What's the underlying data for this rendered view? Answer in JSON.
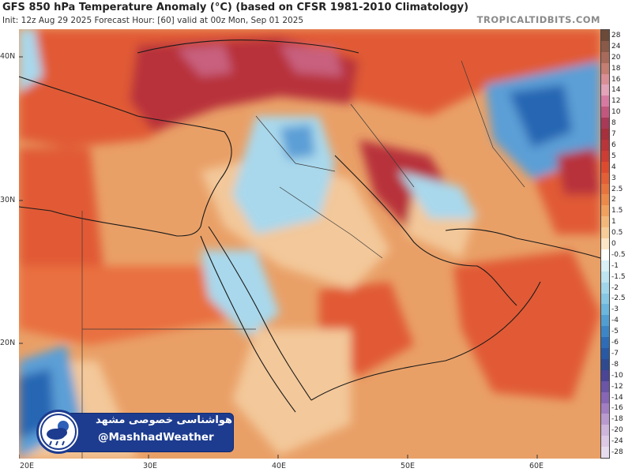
{
  "header": {
    "title": "GFS 850 hPa Temperature Anomaly (°C) (based on CFSR 1981-2010 Climatology)",
    "subtitle": "Init: 12z Aug 29 2025   Forecast Hour: [60]   valid at 00z Mon, Sep 01 2025",
    "brand": "TROPICALTIDBITS.COM"
  },
  "map": {
    "lat_labels": [
      "40N",
      "30N",
      "20N"
    ],
    "lon_labels": [
      "20E",
      "30E",
      "40E",
      "50E",
      "60E"
    ],
    "colors": {
      "very_warm": "#e9a067",
      "warm": "#e15a34",
      "hot": "#b8323a",
      "extreme": "#c8607e",
      "mild": "#f3c89a",
      "neutral": "#ffffff",
      "cool": "#a9d8ec",
      "cold": "#5b9fd6",
      "very_cold": "#2766b3",
      "coastline": "#1a1a1a",
      "border": "#3a3a3a"
    }
  },
  "colorbar": {
    "labels": [
      "28",
      "24",
      "20",
      "18",
      "16",
      "14",
      "12",
      "10",
      "8",
      "7",
      "6",
      "5",
      "4",
      "3",
      "2.5",
      "2",
      "1.5",
      "1",
      "0.5",
      "0",
      "-0.5",
      "-1",
      "-1.5",
      "-2",
      "-2.5",
      "-3",
      "-4",
      "-5",
      "-6",
      "-7",
      "-8",
      "-10",
      "-12",
      "-14",
      "-16",
      "-18",
      "-20",
      "-24",
      "-28"
    ],
    "colors": [
      "#6b4a3a",
      "#8a5a48",
      "#a86a5a",
      "#c47e72",
      "#d98f95",
      "#e3a3b9",
      "#d77aa2",
      "#c2577e",
      "#a83a57",
      "#a6303c",
      "#b8353a",
      "#cc3d33",
      "#dd4b2f",
      "#e35f35",
      "#e8743d",
      "#ec8a4a",
      "#f0a15d",
      "#f3b879",
      "#f6cd98",
      "#fbe6c8",
      "#ffffff",
      "#d8f0f6",
      "#bde4f0",
      "#a1d6ea",
      "#86c7e3",
      "#6bb6dc",
      "#519fd2",
      "#3d86c6",
      "#2e6db6",
      "#2a59a4",
      "#2f4a8e",
      "#4a4595",
      "#6a55a6",
      "#8666b5",
      "#a17ec2",
      "#b99acf",
      "#cdb5db",
      "#dcc9e5",
      "#e8dcef"
    ]
  },
  "badge": {
    "persian": "هواشناسی خصوصی مشهد",
    "handle": "@MashhadWeather"
  }
}
